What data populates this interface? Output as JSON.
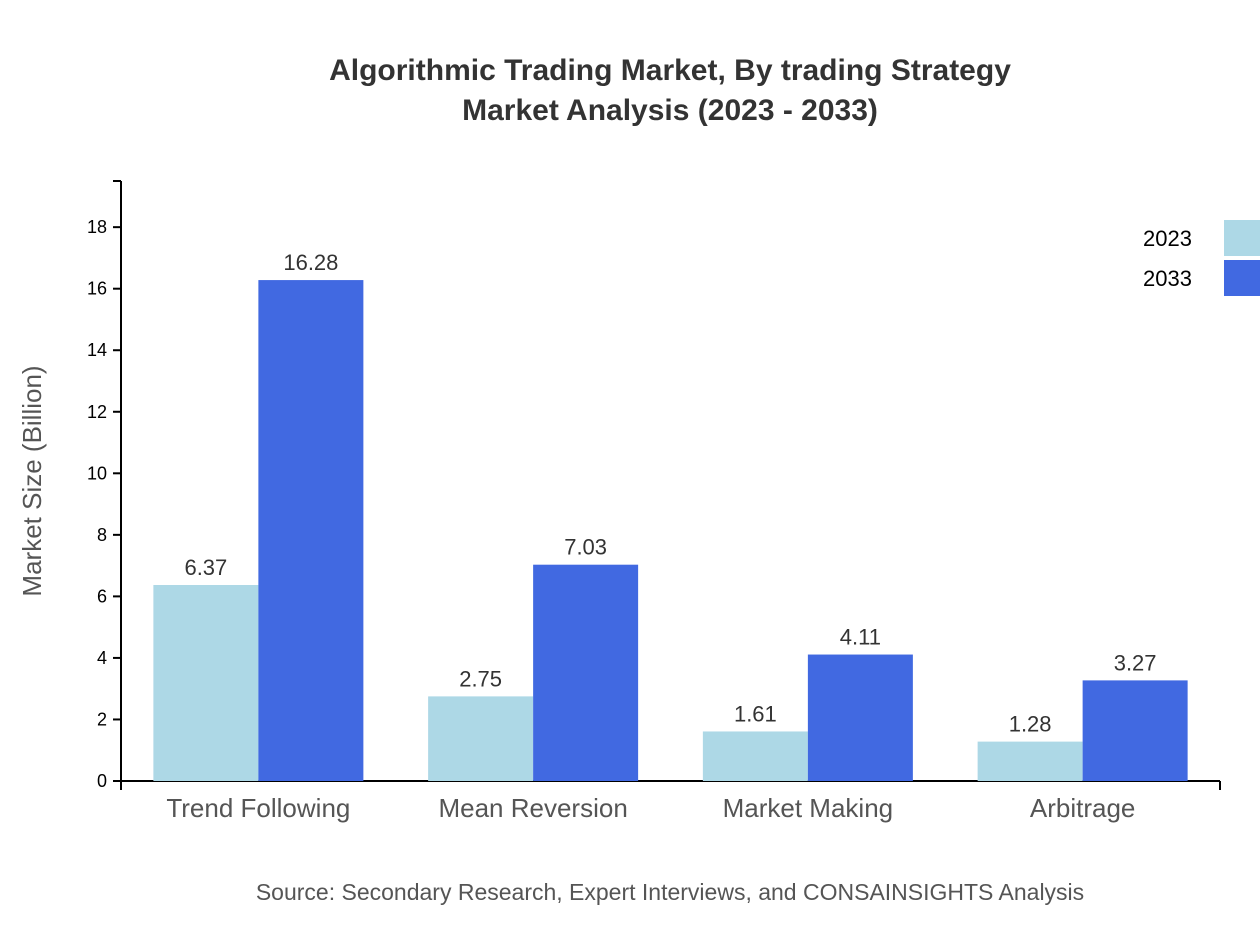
{
  "chart_data": {
    "type": "bar",
    "title": "Algorithmic Trading Market, By trading Strategy",
    "subtitle": "Market Analysis (2023 - 2033)",
    "xlabel": "",
    "ylabel": "Market Size (Billion)",
    "ylim": [
      0,
      19.5
    ],
    "yticks": [
      0,
      2,
      4,
      6,
      8,
      10,
      12,
      14,
      16,
      18
    ],
    "categories": [
      "Trend Following",
      "Mean Reversion",
      "Market Making",
      "Arbitrage"
    ],
    "series": [
      {
        "name": "2023",
        "color": "#ADD8E6",
        "values": [
          6.37,
          2.75,
          1.61,
          1.28
        ]
      },
      {
        "name": "2033",
        "color": "#4169E1",
        "values": [
          16.28,
          7.03,
          4.11,
          3.27
        ]
      }
    ],
    "grid": false,
    "legend": "top-right",
    "source": "Source: Secondary Research, Expert Interviews, and CONSAINSIGHTS Analysis"
  }
}
